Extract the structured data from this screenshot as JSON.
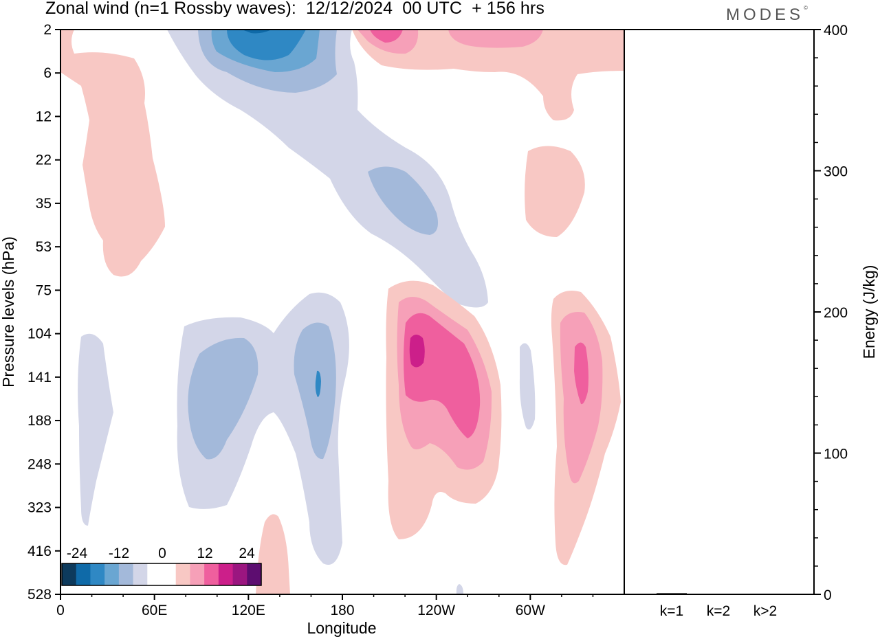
{
  "title": "Zonal wind (n=1 Rossby waves):  12/12/2024  00 UTC  + 156 hrs",
  "logo": "MODES",
  "logo_mark": "©",
  "colors": {
    "neg4": "#0d3a5c",
    "neg3": "#0f6aa8",
    "neg2": "#2f88c4",
    "neg1b": "#6aa6d2",
    "neg1": "#a3b9da",
    "neg0": "#d3d6e8",
    "zero": "#ffffff",
    "pos0": "#f8c8c4",
    "pos1": "#f6a0b8",
    "pos2": "#ef5f9e",
    "pos3": "#cc1f8a",
    "pos4": "#9b1680",
    "pos5": "#5d0d70"
  },
  "chart_data": [
    {
      "type": "heatmap",
      "title": "Zonal wind (n=1 Rossby waves):  12/12/2024  00 UTC  + 156 hrs",
      "xlabel": "Longitude",
      "ylabel": "Pressure levels (hPa)",
      "x_ticks": [
        "0",
        "60E",
        "120E",
        "180",
        "120W",
        "60W"
      ],
      "x_tick_degrees": [
        0,
        60,
        120,
        180,
        240,
        300
      ],
      "xlim": [
        0,
        360
      ],
      "y_ticks": [
        "2",
        "6",
        "12",
        "22",
        "35",
        "53",
        "75",
        "104",
        "141",
        "188",
        "248",
        "323",
        "416",
        "528"
      ],
      "colorbar": {
        "labels": [
          "-24",
          "-12",
          "0",
          "12",
          "24"
        ],
        "levels": [
          -30,
          -24,
          -18,
          -12,
          -6,
          -3,
          3,
          6,
          12,
          18,
          24,
          30
        ]
      },
      "contour_regions": [
        {
          "sign": "negative",
          "level": "weak",
          "lon": [
            5,
            35
          ],
          "p": [
            104,
            323
          ]
        },
        {
          "sign": "negative",
          "level": "weak",
          "lon": [
            75,
            185
          ],
          "p": [
            75,
            416
          ]
        },
        {
          "sign": "negative",
          "level": "moderate",
          "lon": [
            80,
            130
          ],
          "p": [
            120,
            248
          ]
        },
        {
          "sign": "negative",
          "level": "moderate",
          "lon": [
            148,
            180
          ],
          "p": [
            104,
            248
          ]
        },
        {
          "sign": "negative",
          "level": "weak",
          "lon": [
            68,
            275
          ],
          "p": [
            2,
            75
          ]
        },
        {
          "sign": "negative",
          "level": "strong",
          "lon": [
            105,
            155
          ],
          "p": [
            2,
            6
          ]
        },
        {
          "sign": "negative",
          "level": "moderate",
          "lon": [
            195,
            245
          ],
          "p": [
            22,
            53
          ]
        },
        {
          "sign": "positive",
          "level": "weak",
          "lon": [
            0,
            75
          ],
          "p": [
            2,
            53
          ]
        },
        {
          "sign": "positive",
          "level": "weak",
          "lon": [
            210,
            360
          ],
          "p": [
            2,
            12
          ]
        },
        {
          "sign": "positive",
          "level": "moderate",
          "lon": [
            205,
            240
          ],
          "p": [
            2,
            6
          ]
        },
        {
          "sign": "positive",
          "level": "weak",
          "lon": [
            300,
            345
          ],
          "p": [
            22,
            53
          ]
        },
        {
          "sign": "positive",
          "level": "weak",
          "lon": [
            210,
            290
          ],
          "p": [
            75,
            323
          ]
        },
        {
          "sign": "positive",
          "level": "moderate",
          "lon": [
            218,
            280
          ],
          "p": [
            104,
            248
          ]
        },
        {
          "sign": "positive",
          "level": "strong",
          "lon": [
            225,
            275
          ],
          "p": [
            120,
            188
          ]
        },
        {
          "sign": "positive",
          "level": "strongest",
          "lon": [
            228,
            236
          ],
          "p": [
            120,
            141
          ]
        },
        {
          "sign": "positive",
          "level": "weak",
          "lon": [
            315,
            360
          ],
          "p": [
            75,
            416
          ]
        },
        {
          "sign": "positive",
          "level": "moderate",
          "lon": [
            320,
            355
          ],
          "p": [
            104,
            323
          ]
        },
        {
          "sign": "positive",
          "level": "strong",
          "lon": [
            328,
            346
          ],
          "p": [
            120,
            188
          ]
        },
        {
          "sign": "negative",
          "level": "weak",
          "lon": [
            292,
            302
          ],
          "p": [
            120,
            188
          ]
        },
        {
          "sign": "positive",
          "level": "weak",
          "lon": [
            125,
            145
          ],
          "p": [
            323,
            528
          ]
        }
      ]
    },
    {
      "type": "bar",
      "ylabel": "Energy (J/kg)",
      "categories": [
        "k=1",
        "k=2",
        "k>2"
      ],
      "values": [
        0.8,
        0.4,
        0.5
      ],
      "ylim": [
        0,
        400
      ],
      "y_ticks": [
        "0",
        "100",
        "200",
        "300",
        "400"
      ]
    }
  ]
}
